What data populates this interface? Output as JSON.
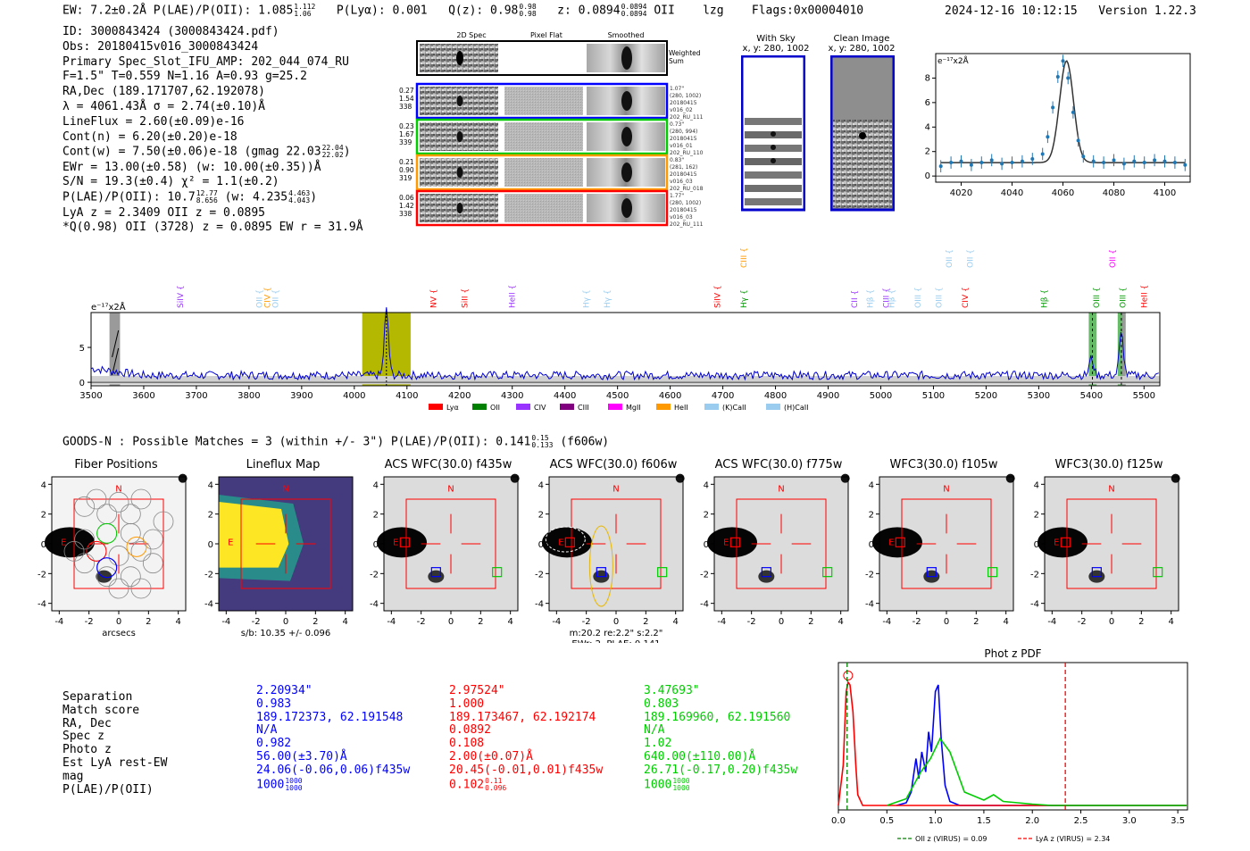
{
  "header": {
    "line": "EW: 7.2±0.2Å  P(LAE)/P(OII): 1.085",
    "lae_up": "1.112",
    "lae_dn": "1.06",
    "plya": "P(Lyα): 0.001",
    "q": "Q(z): 0.98",
    "q_up": "0.98",
    "q_dn": "0.98",
    "z": "z: 0.0894",
    "z_up": "0.0894",
    "z_dn": "0.0894",
    "line_name": "OII",
    "tag": "lzg",
    "flags": "Flags:0x00004010",
    "datetime": "2024-12-16 10:12:15",
    "version": "Version 1.22.3"
  },
  "info": {
    "id": "ID: 3000843424 (3000843424.pdf)",
    "obs": "Obs: 20180415v016_3000843424",
    "primary": "Primary Spec_Slot_IFU_AMP: 202_044_074_RU",
    "f": "F=1.5\"  T=0.559  N=1.16  A=0.93  g=25.2",
    "radec": "RA,Dec (189.171707,62.192078)",
    "lambda": "λ = 4061.43Å  σ = 2.74(±0.10)Å",
    "lineflux": "LineFlux = 2.60(±0.09)e-16",
    "contn": "Cont(n) = 6.20(±0.20)e-18",
    "contw": "Cont(w) = 7.50(±0.06)e-18 (gmag 22.03",
    "contw_up": "22.04",
    "contw_dn": "22.02",
    "ewr": "EWr = 13.00(±0.58) (w: 10.00(±0.35))Å",
    "sn": "S/N = 19.3(±0.4)  χ² = 1.1(±0.2)",
    "plae": "P(LAE)/P(OII): 10.7",
    "plae_up": "12.77",
    "plae_dn": "8.656",
    "plae_w": "(w: 4.235",
    "plae_w_up": "4.463",
    "plae_w_dn": "4.043",
    "lya_z": "LyA z = 2.3409  OII z = 0.0895",
    "qline": "*Q(0.98) OII (3728) z = 0.0895  EW r = 31.9Å"
  },
  "spec2d": {
    "headers": [
      "2D Spec",
      "Pixel Flat",
      "Smoothed"
    ],
    "weighted": "Weighted\nSum",
    "rows": [
      {
        "left": [
          "0.27",
          "1.54",
          "338"
        ],
        "right": [
          "1.07\"",
          "(280, 1002)",
          "20180415",
          "v016_02",
          "202_RU_111"
        ],
        "color": "#0000ff"
      },
      {
        "left": [
          "0.23",
          "1.67",
          "339"
        ],
        "right": [
          "0.73\"",
          "(280, 994)",
          "20180415",
          "v016_01",
          "202_RU_110"
        ],
        "color": "#00cc00"
      },
      {
        "left": [
          "0.21",
          "0.90",
          "319"
        ],
        "right": [
          "0.83\"",
          "(281, 162)",
          "20180415",
          "v016_03",
          "202_RU_018"
        ],
        "color": "#ff9900"
      },
      {
        "left": [
          "0.06",
          "1.42",
          "338"
        ],
        "right": [
          "1.77\"",
          "(280, 1002)",
          "20180415",
          "v016_03",
          "202_RU_111"
        ],
        "color": "#ff0000"
      }
    ]
  },
  "withsky": {
    "title": "With Sky",
    "coord": "x, y: 280, 1002"
  },
  "clean": {
    "title": "Clean Image",
    "coord": "x, y: 280, 1002"
  },
  "chart_data": [
    {
      "type": "line",
      "name": "line fit zoom",
      "unit_label": "e⁻¹⁷x2Å",
      "xlim": [
        4010,
        4110
      ],
      "ylim": [
        -0.5,
        10
      ],
      "xticks": [
        4020,
        4040,
        4060,
        4080,
        4100
      ],
      "yticks": [
        0,
        2,
        4,
        6,
        8
      ],
      "x": [
        4012,
        4016,
        4020,
        4024,
        4028,
        4032,
        4036,
        4040,
        4044,
        4048,
        4052,
        4054,
        4056,
        4058,
        4060,
        4062,
        4064,
        4066,
        4068,
        4072,
        4076,
        4080,
        4084,
        4088,
        4092,
        4096,
        4100,
        4104,
        4108
      ],
      "y": [
        0.8,
        1.1,
        1.2,
        0.9,
        1.1,
        1.3,
        1.0,
        1.1,
        1.2,
        1.4,
        1.8,
        3.2,
        5.6,
        8.1,
        9.4,
        8.0,
        5.2,
        2.9,
        1.6,
        1.2,
        1.1,
        1.3,
        1.0,
        1.2,
        1.1,
        1.3,
        1.2,
        1.1,
        0.9
      ]
    },
    {
      "type": "line",
      "name": "full spectrum",
      "unit_label": "e⁻¹⁷x2Å",
      "xlim": [
        3500,
        5530
      ],
      "ylim": [
        -0.5,
        10
      ],
      "xticks": [
        3500,
        3600,
        3700,
        3800,
        3900,
        4000,
        4100,
        4200,
        4300,
        4400,
        4500,
        4600,
        4700,
        4800,
        4900,
        5000,
        5100,
        5200,
        5300,
        5400,
        5500
      ],
      "yticks": [
        0,
        5
      ],
      "lines_upper": [
        {
          "label": "SiIV",
          "x": 3670,
          "color": "#9933ff"
        },
        {
          "label": "OII",
          "x": 3820,
          "color": "#99ccee"
        },
        {
          "label": "CIV",
          "x": 3835,
          "color": "#ff9900"
        },
        {
          "label": "OII",
          "x": 3850,
          "color": "#99ccee"
        },
        {
          "label": "NV",
          "x": 4150,
          "color": "#ff0000"
        },
        {
          "label": "SiII",
          "x": 4210,
          "color": "#ff0000"
        },
        {
          "label": "HeII",
          "x": 4300,
          "color": "#9933ff"
        },
        {
          "label": "Hγ",
          "x": 4440,
          "color": "#99ccee"
        },
        {
          "label": "Hγ",
          "x": 4480,
          "color": "#99ccee"
        },
        {
          "label": "SiIV",
          "x": 4690,
          "color": "#ff0000"
        },
        {
          "label": "Hγ",
          "x": 4740,
          "color": "#009900"
        },
        {
          "label": "CII",
          "x": 4950,
          "color": "#9933ff"
        },
        {
          "label": "Hβ",
          "x": 4980,
          "color": "#99ccee"
        },
        {
          "label": "CIII",
          "x": 5010,
          "color": "#9933ff"
        },
        {
          "label": "Hβ",
          "x": 5020,
          "color": "#99ccee"
        },
        {
          "label": "OIII",
          "x": 5070,
          "color": "#99ccee"
        },
        {
          "label": "OIII",
          "x": 5110,
          "color": "#99ccee"
        },
        {
          "label": "CIV",
          "x": 5160,
          "color": "#ff0000"
        },
        {
          "label": "Hβ",
          "x": 5310,
          "color": "#009900"
        },
        {
          "label": "OIII",
          "x": 5410,
          "color": "#009900"
        },
        {
          "label": "OIII",
          "x": 5460,
          "color": "#009900"
        },
        {
          "label": "HeII",
          "x": 5500,
          "color": "#ff0000"
        }
      ],
      "lines_top": [
        {
          "label": "CIII",
          "x": 4740,
          "color": "#ff9900"
        },
        {
          "label": "OII",
          "x": 5130,
          "color": "#99ccee"
        },
        {
          "label": "OII",
          "x": 5170,
          "color": "#99ccee"
        },
        {
          "label": "OII",
          "x": 5440,
          "color": "#ff00ff"
        }
      ],
      "legend": [
        {
          "label": "Lyα",
          "color": "#ff0000"
        },
        {
          "label": "OII",
          "color": "#008000"
        },
        {
          "label": "CIV",
          "color": "#9933ff"
        },
        {
          "label": "CIII",
          "color": "#800080"
        },
        {
          "label": "MgII",
          "color": "#ff00ff"
        },
        {
          "label": "HeII",
          "color": "#ff9900"
        },
        {
          "label": "(K)CaII",
          "color": "#99ccee"
        },
        {
          "label": "(H)CaII",
          "color": "#99ccee"
        }
      ],
      "peaks": [
        {
          "x": 4061,
          "y": 9.4
        },
        {
          "x": 5400,
          "y": 2.5
        },
        {
          "x": 5457,
          "y": 6.0
        }
      ],
      "baseline": 1.0
    },
    {
      "type": "line",
      "name": "Phot z PDF",
      "title": "Phot z PDF",
      "xlim": [
        0.0,
        3.6
      ],
      "xticks": [
        "0.0",
        "0.5",
        "1.0",
        "1.5",
        "2.0",
        "2.5",
        "3.0",
        "3.5"
      ],
      "series": [
        {
          "name": "blue",
          "color": "#0000ff",
          "x": [
            0.6,
            0.7,
            0.75,
            0.8,
            0.83,
            0.86,
            0.9,
            0.93,
            0.96,
            1.0,
            1.03,
            1.06,
            1.1,
            1.15,
            1.25
          ],
          "y": [
            0,
            0.02,
            0.1,
            0.35,
            0.2,
            0.4,
            0.25,
            0.55,
            0.4,
            0.85,
            0.9,
            0.5,
            0.15,
            0.03,
            0
          ]
        },
        {
          "name": "red",
          "color": "#ff0000",
          "x": [
            0.0,
            0.05,
            0.08,
            0.1,
            0.12,
            0.15,
            0.18,
            0.2,
            0.25
          ],
          "y": [
            0,
            0.3,
            0.85,
            0.92,
            0.9,
            0.7,
            0.3,
            0.08,
            0
          ]
        },
        {
          "name": "green",
          "color": "#00cc00",
          "x": [
            0.5,
            0.7,
            0.85,
            0.95,
            1.05,
            1.15,
            1.3,
            1.5,
            1.6,
            1.7,
            2.0,
            2.2
          ],
          "y": [
            0,
            0.05,
            0.25,
            0.35,
            0.5,
            0.4,
            0.1,
            0.04,
            0.08,
            0.03,
            0.01,
            0
          ]
        }
      ],
      "vlines": [
        {
          "label": "OII z (VIRUS) = 0.09",
          "x": 0.09,
          "color": "#008000"
        },
        {
          "label": "LyA z (VIRUS) = 2.34",
          "x": 2.34,
          "color": "#ff0000"
        }
      ]
    }
  ],
  "goods": {
    "line": "GOODS-N : Possible Matches = 3 (within +/- 3\")  P(LAE)/P(OII): 0.141",
    "up": "0.15",
    "dn": "0.133",
    "band": "(f606w)"
  },
  "cutouts": {
    "titles": [
      "Fiber Positions",
      "Lineflux Map",
      "ACS WFC(30.0) f435w",
      "ACS WFC(30.0) f606w",
      "ACS WFC(30.0) f775w",
      "WFC3(30.0) f105w",
      "WFC3(30.0) f125w"
    ],
    "ticks": [
      "-4",
      "-2",
      "0",
      "2",
      "4"
    ],
    "north": "N",
    "east": "E",
    "fiber_xlabel": "arcsecs",
    "lineflux_xlabel": "s/b: 10.35 +/- 0.096",
    "f606_note1": "m:20.2  re:2.2\"  s:2.2\"",
    "f606_note2": "EWr: 2, PLAE: 0.141"
  },
  "matches": {
    "labels": [
      "Separation",
      "Match score",
      "RA, Dec",
      "Spec z",
      "Photo z",
      "Est LyA rest-EW",
      "mag",
      "P(LAE)/P(OII)"
    ],
    "cols": [
      {
        "color": "#0000ff",
        "vals": [
          "2.20934\"",
          "0.983",
          "189.172373, 62.191548",
          "N/A",
          "0.982",
          "56.00(±3.70)Å",
          "24.06(-0.06,0.06)f435w",
          "1000"
        ],
        "up": "1000",
        "dn": "1000"
      },
      {
        "color": "#ff0000",
        "vals": [
          "2.97524\"",
          "1.000",
          "189.173467, 62.192174",
          "0.0892",
          "0.108",
          "2.00(±0.07)Å",
          "20.45(-0.01,0.01)f435w",
          "0.102"
        ],
        "up": "0.11",
        "dn": "0.096"
      },
      {
        "color": "#00cc00",
        "vals": [
          "3.47693\"",
          "0.803",
          "189.169960, 62.191560",
          "N/A",
          "1.02",
          "640.00(±110.00)Å",
          "26.71(-0.17,0.20)f435w",
          "1000"
        ],
        "up": "1000",
        "dn": "1000"
      }
    ]
  }
}
